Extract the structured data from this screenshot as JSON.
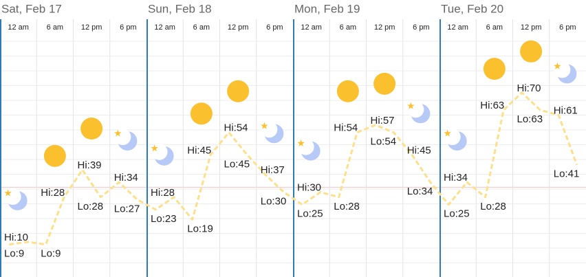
{
  "days": [
    {
      "label": "Sat, Feb 17",
      "periods": [
        {
          "time": "12 am",
          "icon": "moon",
          "hi": 10,
          "hi_label": "Hi:10",
          "lo": 9,
          "lo_label": "Lo:9"
        },
        {
          "time": "6 am",
          "icon": "sun",
          "hi": 28,
          "hi_label": "Hi:28",
          "lo": 9,
          "lo_label": "Lo:9"
        },
        {
          "time": "12 pm",
          "icon": "sun",
          "hi": 39,
          "hi_label": "Hi:39",
          "lo": 28,
          "lo_label": "Lo:28"
        },
        {
          "time": "6 pm",
          "icon": "moon",
          "hi": 34,
          "hi_label": "Hi:34",
          "lo": 27,
          "lo_label": "Lo:27"
        }
      ]
    },
    {
      "label": "Sun, Feb 18",
      "periods": [
        {
          "time": "12 am",
          "icon": "moon",
          "hi": 28,
          "hi_label": "Hi:28",
          "lo": 23,
          "lo_label": "Lo:23"
        },
        {
          "time": "6 am",
          "icon": "sun",
          "hi": 45,
          "hi_label": "Hi:45",
          "lo": 19,
          "lo_label": "Lo:19"
        },
        {
          "time": "12 pm",
          "icon": "sun",
          "hi": 54,
          "hi_label": "Hi:54",
          "lo": 45,
          "lo_label": "Lo:45"
        },
        {
          "time": "6 pm",
          "icon": "moon",
          "hi": 37,
          "hi_label": "Hi:37",
          "lo": 30,
          "lo_label": "Lo:30"
        }
      ]
    },
    {
      "label": "Mon, Feb 19",
      "periods": [
        {
          "time": "12 am",
          "icon": "moon",
          "hi": 30,
          "hi_label": "Hi:30",
          "lo": 25,
          "lo_label": "Lo:25"
        },
        {
          "time": "6 am",
          "icon": "sun",
          "hi": 54,
          "hi_label": "Hi:54",
          "lo": 28,
          "lo_label": "Lo:28"
        },
        {
          "time": "12 pm",
          "icon": "sun",
          "hi": 57,
          "hi_label": "Hi:57",
          "lo": 54,
          "lo_label": "Lo:54"
        },
        {
          "time": "6 pm",
          "icon": "moon",
          "hi": 45,
          "hi_label": "Hi:45",
          "lo": 34,
          "lo_label": "Lo:34"
        }
      ]
    },
    {
      "label": "Tue, Feb 20",
      "periods": [
        {
          "time": "12 am",
          "icon": "moon",
          "hi": 34,
          "hi_label": "Hi:34",
          "lo": 25,
          "lo_label": "Lo:25"
        },
        {
          "time": "6 am",
          "icon": "sun",
          "hi": 63,
          "hi_label": "Hi:63",
          "lo": 28,
          "lo_label": "Lo:28"
        },
        {
          "time": "12 pm",
          "icon": "sun",
          "hi": 70,
          "hi_label": "Hi:70",
          "lo": 63,
          "lo_label": "Lo:63"
        },
        {
          "time": "6 pm",
          "icon": "moon",
          "hi": 61,
          "hi_label": "Hi:61",
          "lo": 41,
          "lo_label": "Lo:41"
        }
      ]
    }
  ],
  "freezing_line": 32
}
